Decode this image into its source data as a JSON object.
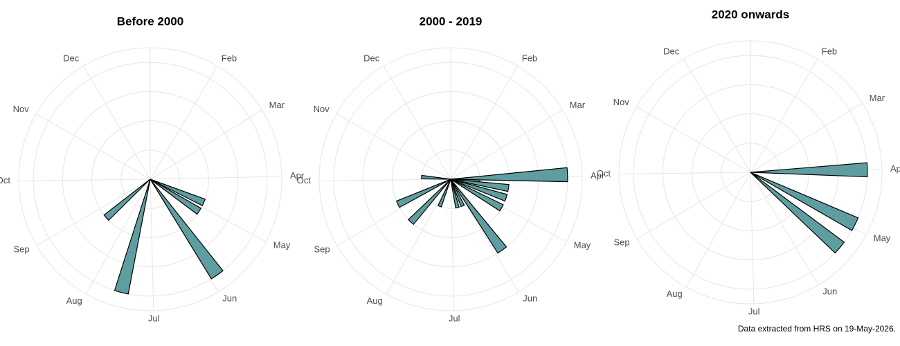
{
  "chart_data": [
    {
      "type": "polar-bar",
      "title": "Before 2000",
      "x": [
        115,
        125,
        147,
        197,
        232
      ],
      "values": [
        2,
        2,
        4,
        4,
        2
      ],
      "color": "#5f9ea0",
      "xlim": [
        0,
        365
      ],
      "ylim": [
        0,
        4.5
      ],
      "yticks": [
        1,
        2,
        3,
        4
      ],
      "xticks": [
        {
          "value": 31,
          "label": "Feb"
        },
        {
          "value": 59,
          "label": "Mar"
        },
        {
          "value": 90,
          "label": "Apr"
        },
        {
          "value": 120,
          "label": "May"
        },
        {
          "value": 151,
          "label": "Jun"
        },
        {
          "value": 181,
          "label": "Jul"
        },
        {
          "value": 212,
          "label": "Aug"
        },
        {
          "value": 243,
          "label": "Sep"
        },
        {
          "value": 273,
          "label": "Oct"
        },
        {
          "value": 304,
          "label": "Nov"
        },
        {
          "value": 334,
          "label": "Dec"
        }
      ]
    },
    {
      "type": "polar-bar",
      "title": "2000 - 2019",
      "x": [
        89,
        96,
        100,
        110,
        121,
        146,
        158,
        169,
        205,
        226,
        248,
        278
      ],
      "values": [
        4,
        1,
        2,
        2,
        2,
        3,
        1,
        1,
        1,
        2,
        2,
        1
      ],
      "color": "#5f9ea0",
      "xlim": [
        0,
        365
      ],
      "ylim": [
        0,
        4.5
      ],
      "yticks": [
        1,
        2,
        3,
        4
      ],
      "xticks": [
        {
          "value": 31,
          "label": "Feb"
        },
        {
          "value": 59,
          "label": "Mar"
        },
        {
          "value": 90,
          "label": "Apr"
        },
        {
          "value": 120,
          "label": "May"
        },
        {
          "value": 151,
          "label": "Jun"
        },
        {
          "value": 181,
          "label": "Jul"
        },
        {
          "value": 212,
          "label": "Aug"
        },
        {
          "value": 243,
          "label": "Sep"
        },
        {
          "value": 273,
          "label": "Oct"
        },
        {
          "value": 304,
          "label": "Nov"
        },
        {
          "value": 334,
          "label": "Dec"
        }
      ]
    },
    {
      "type": "polar-bar",
      "title": "2020 onwards",
      "x": [
        90,
        118,
        132
      ],
      "values": [
        4,
        4,
        4
      ],
      "color": "#5f9ea0",
      "xlim": [
        0,
        365
      ],
      "ylim": [
        0,
        4.5
      ],
      "yticks": [
        1,
        2,
        3,
        4
      ],
      "xticks": [
        {
          "value": 31,
          "label": "Feb"
        },
        {
          "value": 59,
          "label": "Mar"
        },
        {
          "value": 90,
          "label": "Apr"
        },
        {
          "value": 120,
          "label": "May"
        },
        {
          "value": 151,
          "label": "Jun"
        },
        {
          "value": 181,
          "label": "Jul"
        },
        {
          "value": 212,
          "label": "Aug"
        },
        {
          "value": 243,
          "label": "Sep"
        },
        {
          "value": 273,
          "label": "Oct"
        },
        {
          "value": 304,
          "label": "Nov"
        },
        {
          "value": 334,
          "label": "Dec"
        }
      ]
    }
  ],
  "caption": "Data extracted from HRS on 19-May-2026."
}
